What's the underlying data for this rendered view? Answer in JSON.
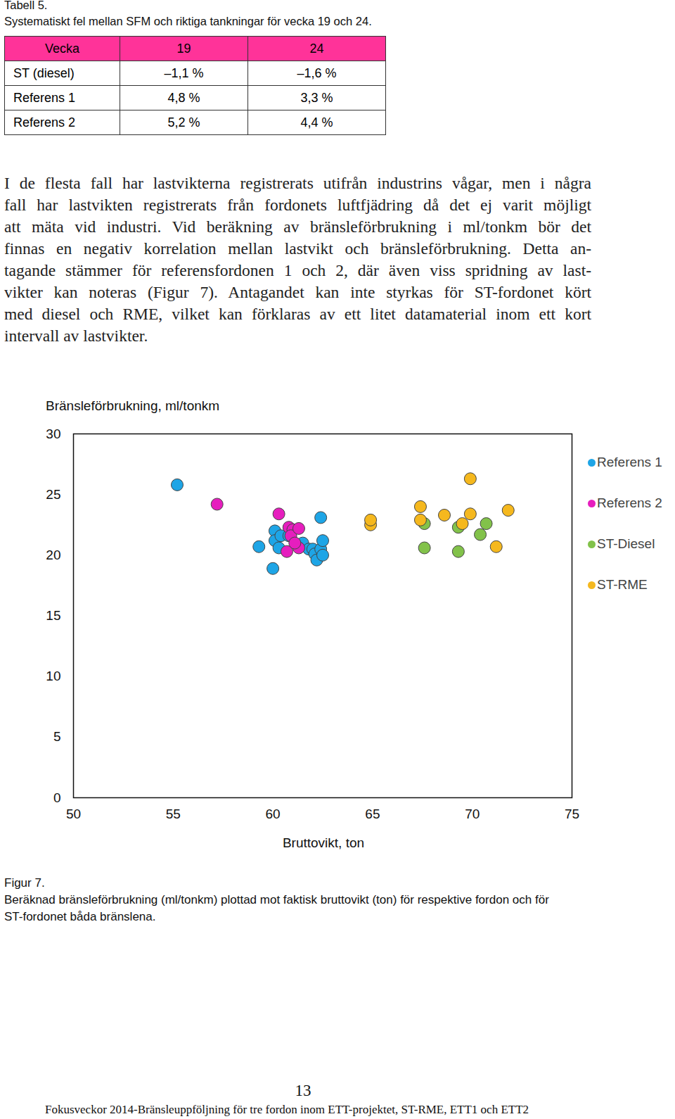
{
  "header": {
    "label": "Tabell 5.",
    "title": "Systematiskt fel mellan SFM och riktiga tankningar för vecka 19 och 24."
  },
  "table": {
    "rows": [
      [
        "Vecka",
        "19",
        "24"
      ],
      [
        "ST (diesel)",
        "–1,1 %",
        "–1,6 %"
      ],
      [
        "Referens 1",
        "4,8 %",
        "3,3 %"
      ],
      [
        "Referens 2",
        "5,2 %",
        "4,4 %"
      ]
    ],
    "header_color": "#ff3399"
  },
  "paragraph": {
    "lines": [
      "I de flesta fall har lastvikterna registrerats utifrån industrins vågar, men i några",
      "fall har lastvikten registrerats från fordonets luftfjädring då det ej varit möjligt",
      "att mäta vid industri. Vid beräkning av bränsleförbrukning i ml/tonkm bör det",
      "finnas en negativ korrelation mellan lastvikt och bränsleförbrukning. Detta an-",
      "tagande stämmer för referensfordonen 1 och 2, där även viss spridning av last-",
      "vikter kan noteras (Figur 7). Antagandet kan inte styrkas för ST-fordonet kört",
      "med diesel och RME, vilket kan förklaras av ett litet datamaterial inom ett kort",
      "intervall av lastvikter."
    ]
  },
  "chart_data": {
    "type": "scatter",
    "y_label": "Bränsleförbrukning, ml/tonkm",
    "x_label": "Bruttovikt, ton",
    "xlim": [
      50,
      75
    ],
    "xticks": [
      50,
      55,
      60,
      65,
      70,
      75
    ],
    "ylim": [
      0,
      30
    ],
    "yticks": [
      0,
      5,
      10,
      15,
      20,
      25,
      30
    ],
    "grid": false,
    "legend": "right",
    "series": [
      {
        "name": "Referens 1",
        "color": "#1ea5e6",
        "x": [
          55.2,
          59.3,
          60.1,
          60.1,
          60.3,
          60.4,
          60.0,
          60.8,
          61.5,
          61.8,
          62.0,
          62.1,
          62.2,
          62.4,
          62.5,
          62.4,
          62.5
        ],
        "values": [
          25.8,
          20.7,
          22.0,
          21.2,
          20.6,
          21.6,
          18.9,
          21.6,
          21.0,
          20.5,
          20.5,
          20.1,
          19.6,
          20.5,
          20.0,
          23.1,
          21.2
        ]
      },
      {
        "name": "Referens 2",
        "color": "#e61ebe",
        "x": [
          57.2,
          60.3,
          60.8,
          61.0,
          60.9,
          61.3,
          60.7,
          61.3,
          61.1
        ],
        "values": [
          24.2,
          23.4,
          22.3,
          22.1,
          21.6,
          22.2,
          20.3,
          20.6,
          21.0
        ]
      },
      {
        "name": "ST-Diesel",
        "color": "#82c24a",
        "x": [
          67.6,
          67.6,
          69.3,
          69.3,
          70.7,
          70.4
        ],
        "values": [
          22.6,
          20.6,
          22.3,
          20.3,
          22.6,
          21.7
        ]
      },
      {
        "name": "ST-RME",
        "color": "#f5b81e",
        "x": [
          64.9,
          64.9,
          67.4,
          67.4,
          68.6,
          69.5,
          69.9,
          69.9,
          71.2,
          71.8
        ],
        "values": [
          22.5,
          22.9,
          24.0,
          22.9,
          23.3,
          22.6,
          23.4,
          26.3,
          20.7,
          23.7
        ]
      }
    ]
  },
  "caption": {
    "label": "Figur 7.",
    "lines": [
      "Beräknad bränsleförbrukning (ml/tonkm) plottad mot faktisk bruttovikt (ton) för respektive fordon och för",
      "ST-fordonet båda bränslena."
    ]
  },
  "footer": {
    "page": "13",
    "text": "Fokusveckor 2014-Bränsleuppföljning för tre fordon inom ETT-projektet, ST-RME, ETT1 och ETT2"
  }
}
